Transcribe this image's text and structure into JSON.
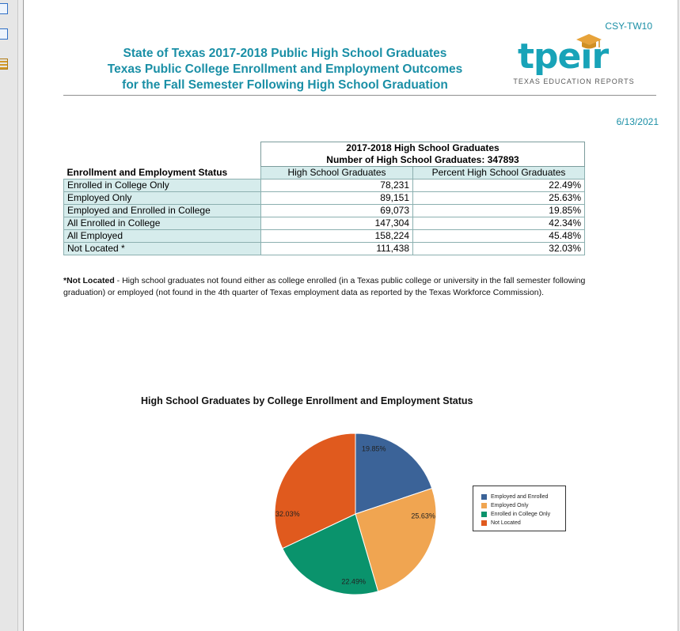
{
  "report_code": "CSY-TW10",
  "title_lines": [
    "State of Texas 2017-2018 Public High School Graduates",
    "Texas Public College Enrollment and Employment Outcomes",
    "for the Fall Semester Following High School Graduation"
  ],
  "logo": {
    "word": "tpeir",
    "subtitle": "TEXAS  EDUCATION REPORTS"
  },
  "report_date": "6/13/2021",
  "table": {
    "group_header_line1": "2017-2018 High School Graduates",
    "group_header_line2": "Number of High School Graduates: 347893",
    "status_header": "Enrollment and Employment Status",
    "col_count_header": "High School Graduates",
    "col_pct_header": "Percent High School Graduates",
    "rows": [
      {
        "label": "Enrolled in College Only",
        "count": "78,231",
        "pct": "22.49%"
      },
      {
        "label": "Employed Only",
        "count": "89,151",
        "pct": "25.63%"
      },
      {
        "label": "Employed and Enrolled in College",
        "count": "69,073",
        "pct": "19.85%"
      },
      {
        "label": "All Enrolled in College",
        "count": "147,304",
        "pct": "42.34%"
      },
      {
        "label": "All Employed",
        "count": "158,224",
        "pct": "45.48%"
      },
      {
        "label": "Not Located *",
        "count": "111,438",
        "pct": "32.03%"
      }
    ]
  },
  "footnote": {
    "term": "*Not Located",
    "text": " - High school graduates not found either as college enrolled (in a Texas public college or university in the fall semester following graduation) or employed (not found in the 4th quarter of Texas employment data as reported by the Texas Workforce Commission)."
  },
  "chart_title": "High School Graduates by College Enrollment and Employment Status",
  "chart_data": {
    "type": "pie",
    "title": "High School Graduates by College Enrollment and Employment Status",
    "legend_position": "right",
    "slices": [
      {
        "name": "Employed and Enrolled",
        "value": 19.85,
        "label": "19.85%",
        "color": "#3b6398"
      },
      {
        "name": "Employed Only",
        "value": 25.63,
        "label": "25.63%",
        "color": "#f0a551"
      },
      {
        "name": "Enrolled in College Only",
        "value": 22.49,
        "label": "22.49%",
        "color": "#0a936c"
      },
      {
        "name": "Not Located",
        "value": 32.03,
        "label": "32.03%",
        "color": "#e05a1e"
      }
    ]
  }
}
